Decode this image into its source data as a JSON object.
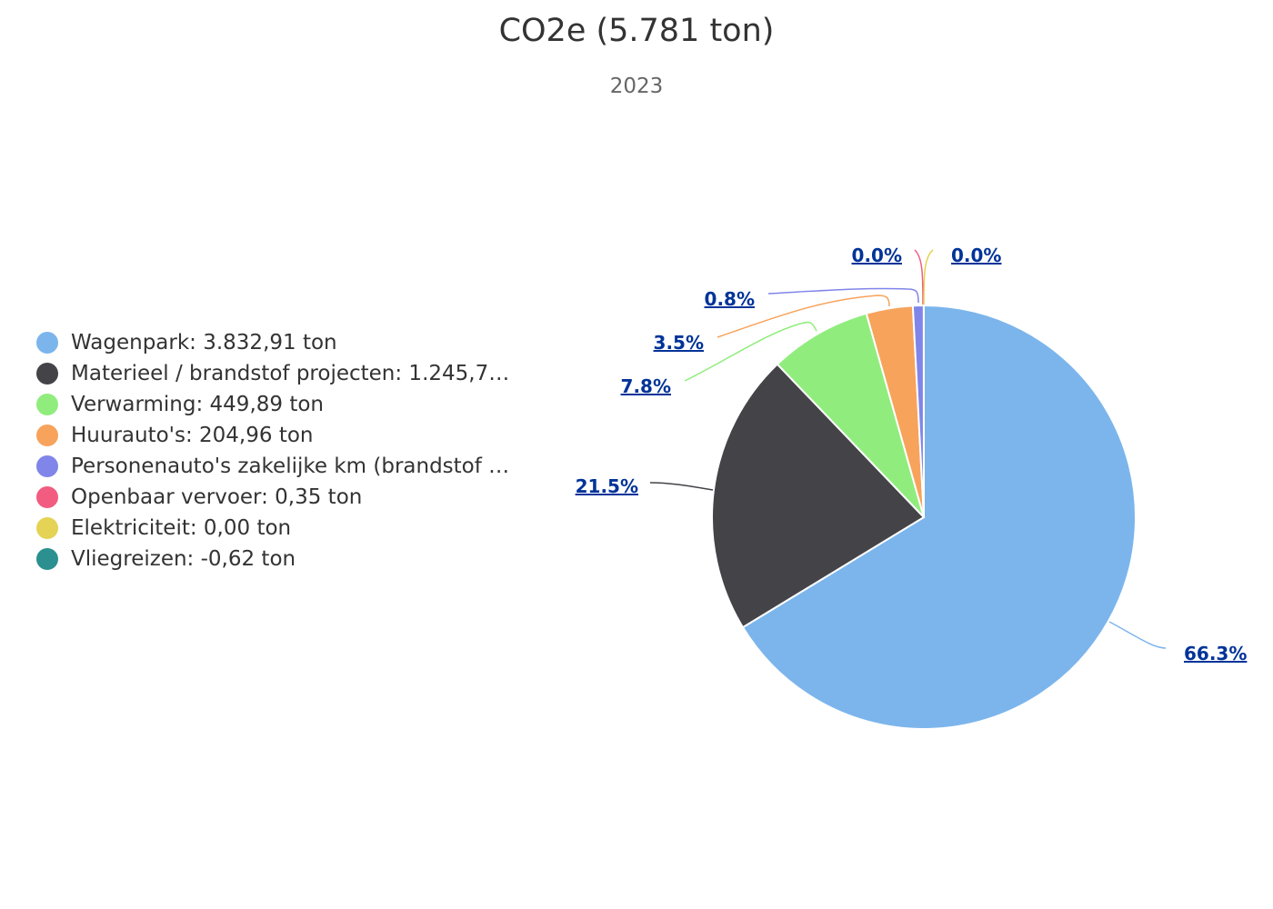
{
  "chart_data": {
    "type": "pie",
    "title": "CO2e (5.781 ton)",
    "subtitle": "2023",
    "legend_position": "left",
    "slices": [
      {
        "name": "Wagenpark",
        "legend": "Wagenpark: 3.832,91 ton",
        "value": 3832.91,
        "percent_label": "66.3%",
        "color": "#7cb5ec"
      },
      {
        "name": "Materieel / brandstof projecten",
        "legend": "Materieel / brandstof projecten: 1.245,7…",
        "value": 1245.7,
        "percent_label": "21.5%",
        "color": "#434348"
      },
      {
        "name": "Verwarming",
        "legend": "Verwarming: 449,89 ton",
        "value": 449.89,
        "percent_label": "7.8%",
        "color": "#90ed7d"
      },
      {
        "name": "Huurauto's",
        "legend": "Huurauto's: 204,96 ton",
        "value": 204.96,
        "percent_label": "3.5%",
        "color": "#f7a35c"
      },
      {
        "name": "Personenauto's zakelijke km (brandstof",
        "legend": "Personenauto's zakelijke km (brandstof …",
        "value": 47.5,
        "percent_label": "0.8%",
        "color": "#8085e9"
      },
      {
        "name": "Openbaar vervoer",
        "legend": "Openbaar vervoer: 0,35 ton",
        "value": 0.35,
        "percent_label": "0.0%",
        "color": "#f15c80"
      },
      {
        "name": "Elektriciteit",
        "legend": "Elektriciteit: 0,00 ton",
        "value": 0.0,
        "percent_label": "0.0%",
        "color": "#e4d354"
      },
      {
        "name": "Vliegreizen",
        "legend": "Vliegreizen: -0,62 ton",
        "value": -0.62,
        "percent_label": null,
        "color": "#2b908f"
      }
    ]
  }
}
